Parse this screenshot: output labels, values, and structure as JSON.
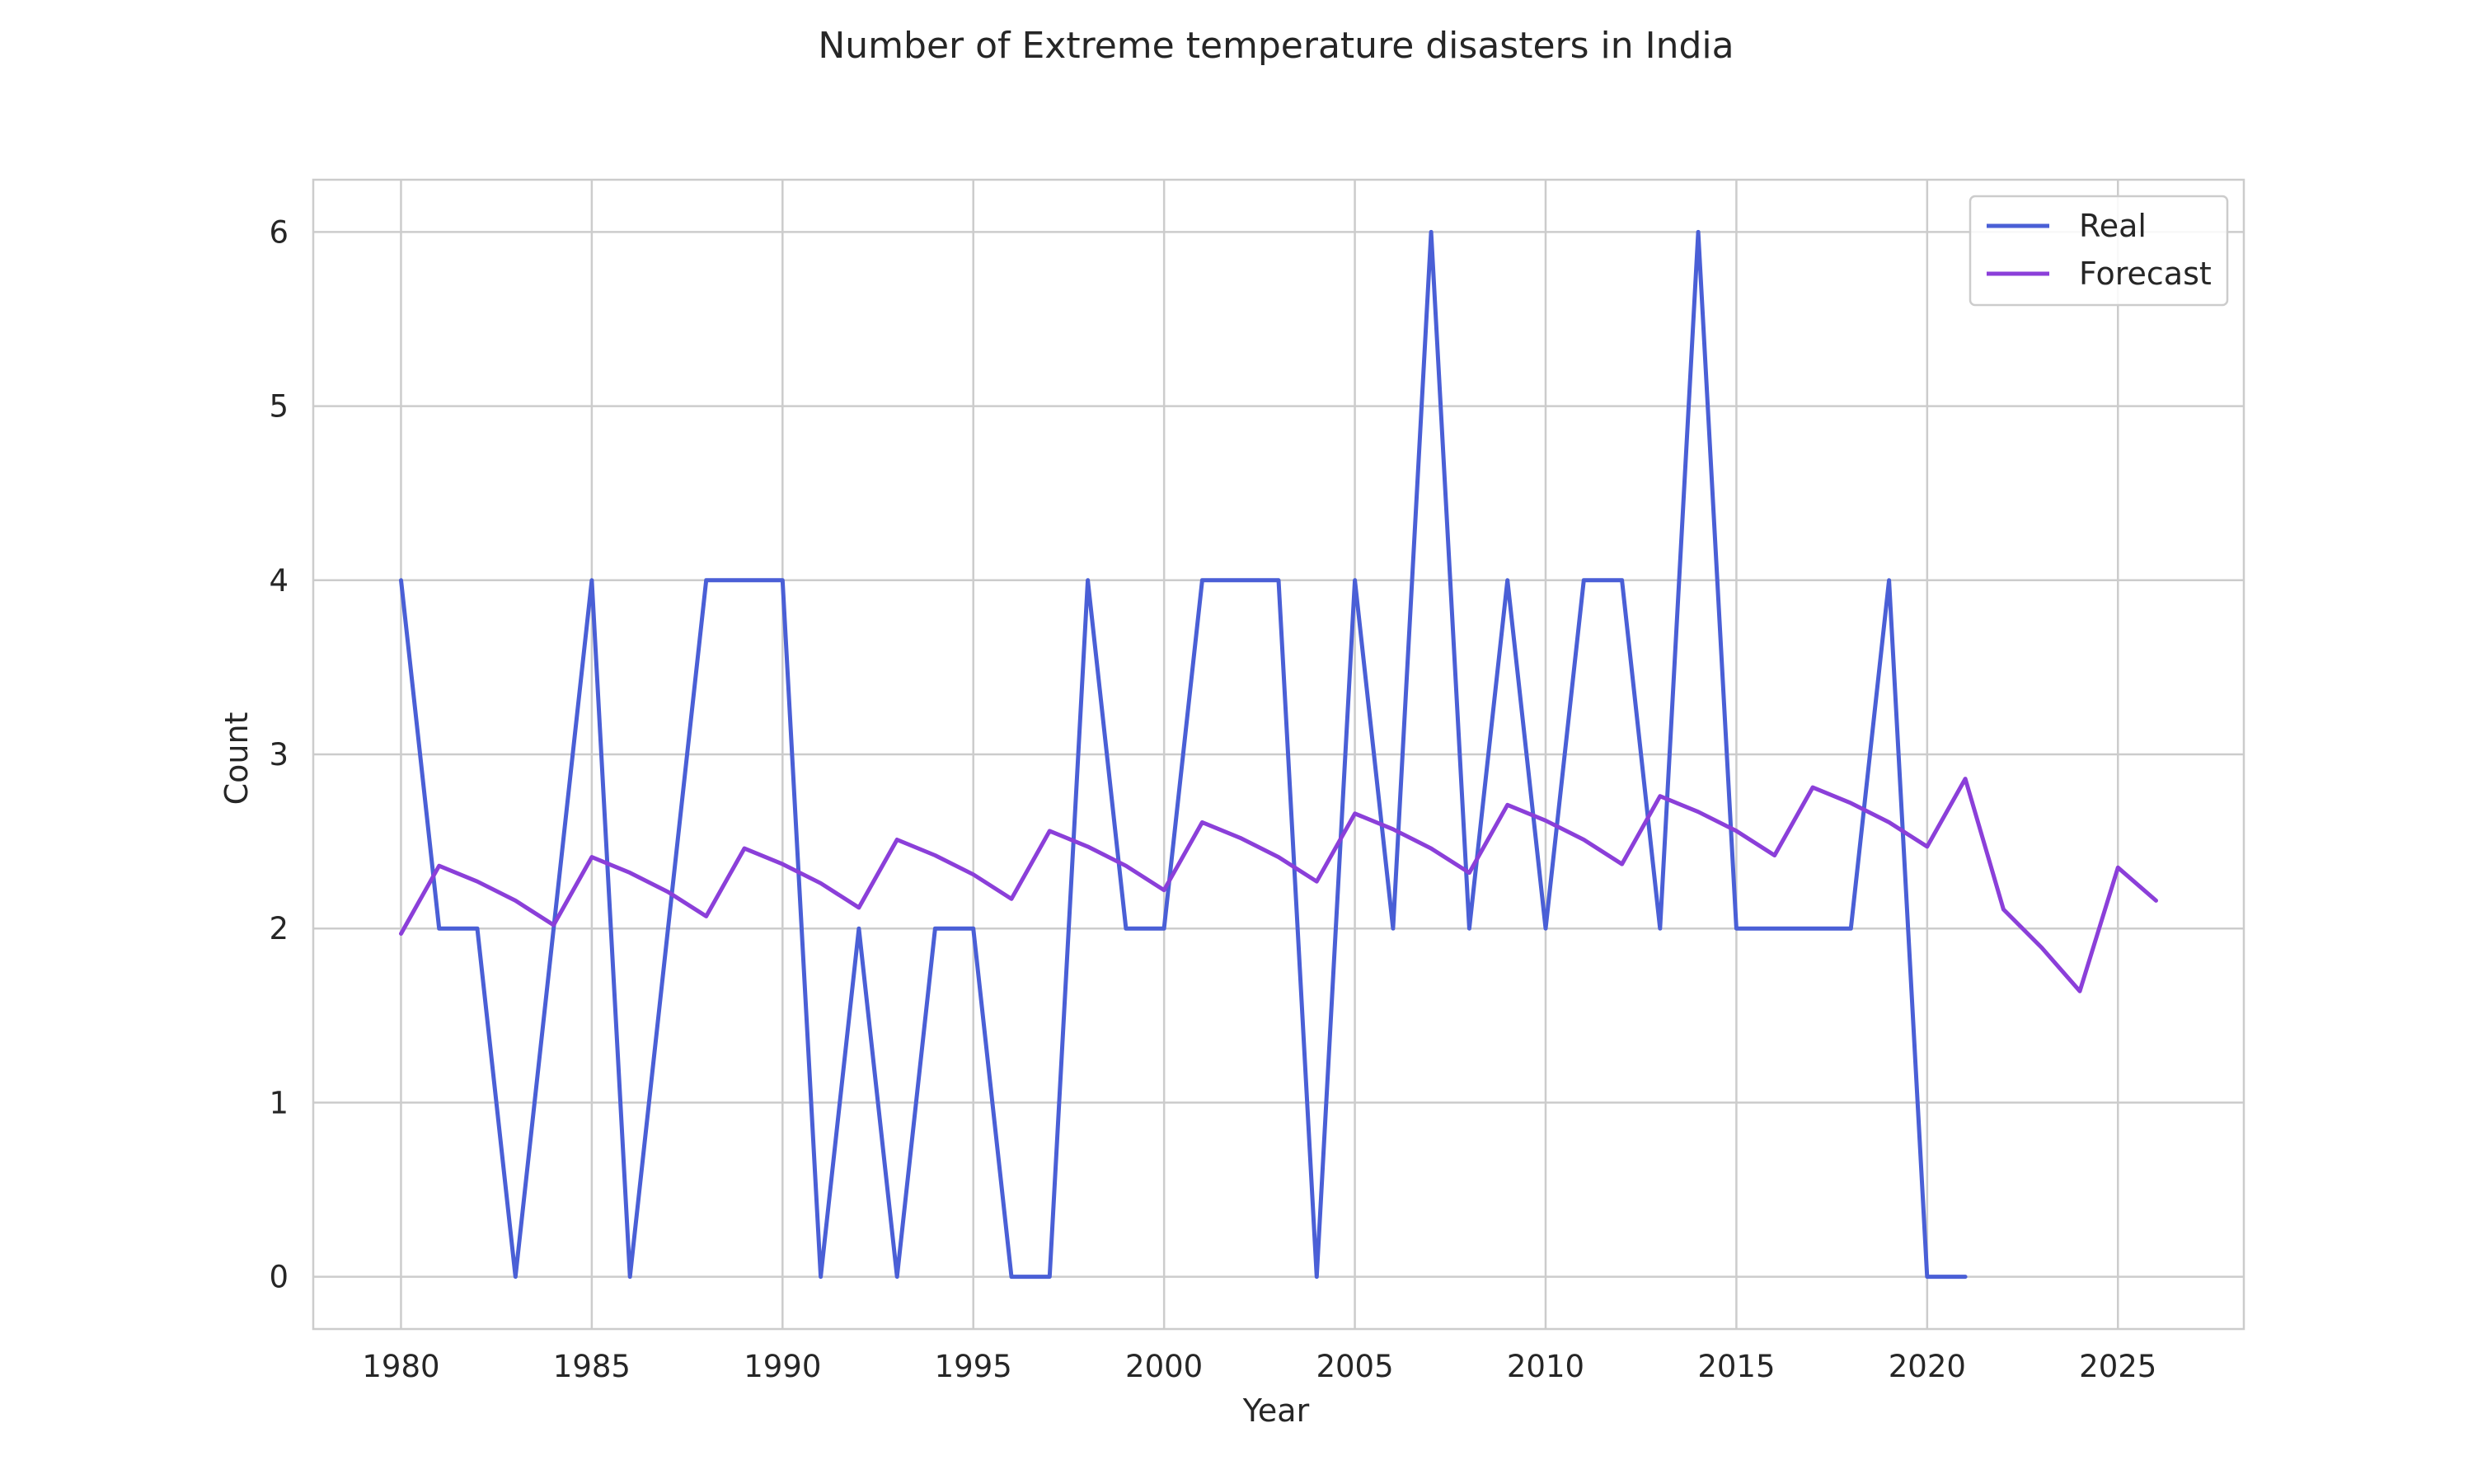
{
  "chart_data": {
    "type": "line",
    "title": "Number of Extreme temperature  disasters in India",
    "xlabel": "Year",
    "ylabel": "Count",
    "xlim": [
      1977.7,
      2028.3
    ],
    "ylim": [
      -0.3,
      6.3
    ],
    "xticks": [
      1980,
      1985,
      1990,
      1995,
      2000,
      2005,
      2010,
      2015,
      2020,
      2025
    ],
    "yticks": [
      0,
      1,
      2,
      3,
      4,
      5,
      6
    ],
    "grid": true,
    "legend_position": "top-right",
    "series": [
      {
        "name": "Real",
        "color": "#4a5fd6",
        "x": [
          1980,
          1981,
          1982,
          1983,
          1984,
          1985,
          1986,
          1987,
          1988,
          1989,
          1990,
          1991,
          1992,
          1993,
          1994,
          1995,
          1996,
          1997,
          1998,
          1999,
          2000,
          2001,
          2002,
          2003,
          2004,
          2005,
          2006,
          2007,
          2008,
          2009,
          2010,
          2011,
          2012,
          2013,
          2014,
          2015,
          2016,
          2017,
          2018,
          2019,
          2020,
          2021
        ],
        "values": [
          4,
          2,
          2,
          0,
          2,
          4,
          0,
          2,
          4,
          4,
          4,
          0,
          2,
          0,
          2,
          2,
          0,
          0,
          4,
          2,
          2,
          4,
          4,
          4,
          0,
          4,
          2,
          6,
          2,
          4,
          2,
          4,
          4,
          2,
          6,
          2,
          2,
          2,
          2,
          4,
          0,
          0
        ]
      },
      {
        "name": "Forecast",
        "color": "#8b3fd9",
        "x": [
          1980,
          1981,
          1982,
          1983,
          1984,
          1985,
          1986,
          1987,
          1988,
          1989,
          1990,
          1991,
          1992,
          1993,
          1994,
          1995,
          1996,
          1997,
          1998,
          1999,
          2000,
          2001,
          2002,
          2003,
          2004,
          2005,
          2006,
          2007,
          2008,
          2009,
          2010,
          2011,
          2012,
          2013,
          2014,
          2015,
          2016,
          2017,
          2018,
          2019,
          2020,
          2021,
          2022,
          2023,
          2024,
          2025,
          2026
        ],
        "values": [
          1.97,
          2.36,
          2.27,
          2.16,
          2.02,
          2.41,
          2.32,
          2.21,
          2.07,
          2.46,
          2.37,
          2.26,
          2.12,
          2.51,
          2.42,
          2.31,
          2.17,
          2.56,
          2.47,
          2.36,
          2.22,
          2.61,
          2.52,
          2.41,
          2.27,
          2.66,
          2.57,
          2.46,
          2.32,
          2.71,
          2.62,
          2.51,
          2.37,
          2.76,
          2.67,
          2.56,
          2.42,
          2.81,
          2.72,
          2.61,
          2.47,
          2.86,
          2.11,
          1.89,
          1.64,
          2.35,
          2.16
        ]
      }
    ]
  }
}
